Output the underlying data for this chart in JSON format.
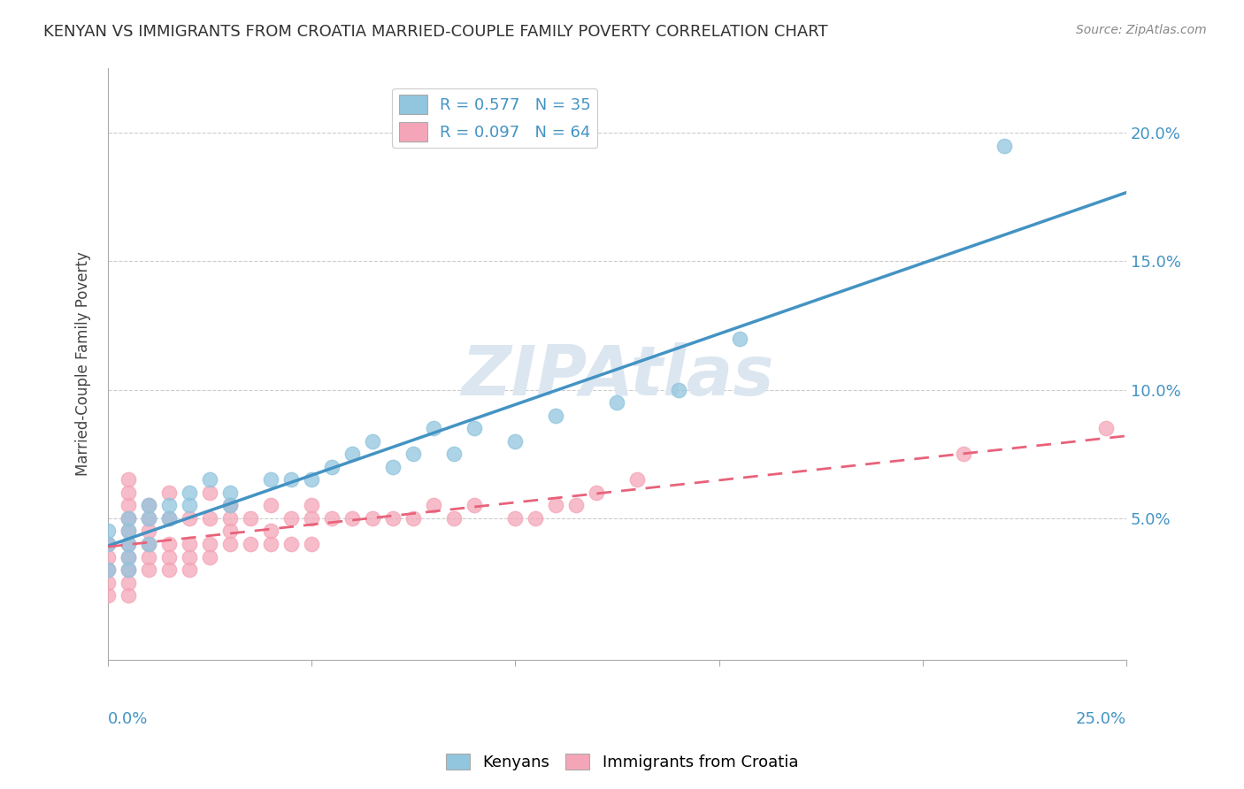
{
  "title": "KENYAN VS IMMIGRANTS FROM CROATIA MARRIED-COUPLE FAMILY POVERTY CORRELATION CHART",
  "source": "Source: ZipAtlas.com",
  "ylabel": "Married-Couple Family Poverty",
  "x_min": 0.0,
  "x_max": 0.25,
  "y_min": -0.005,
  "y_max": 0.225,
  "y_ticks": [
    0.05,
    0.1,
    0.15,
    0.2
  ],
  "y_tick_labels": [
    "5.0%",
    "10.0%",
    "15.0%",
    "20.0%"
  ],
  "x_ticks": [
    0.0,
    0.05,
    0.1,
    0.15,
    0.2,
    0.25
  ],
  "legend_r1": "R = 0.577   N = 35",
  "legend_r2": "R = 0.097   N = 64",
  "legend_labels": [
    "Kenyans",
    "Immigrants from Croatia"
  ],
  "blue_color": "#92c5de",
  "pink_color": "#f4a6b8",
  "line_blue_color": "#4393c3",
  "line_pink_color": "#e8627a",
  "kenyan_x": [
    0.0,
    0.0,
    0.0,
    0.005,
    0.005,
    0.005,
    0.005,
    0.005,
    0.01,
    0.01,
    0.01,
    0.015,
    0.015,
    0.02,
    0.02,
    0.025,
    0.03,
    0.03,
    0.04,
    0.045,
    0.05,
    0.055,
    0.06,
    0.065,
    0.07,
    0.075,
    0.08,
    0.085,
    0.09,
    0.1,
    0.11,
    0.125,
    0.14,
    0.155,
    0.22
  ],
  "kenyan_y": [
    0.03,
    0.04,
    0.045,
    0.03,
    0.035,
    0.04,
    0.045,
    0.05,
    0.04,
    0.05,
    0.055,
    0.05,
    0.055,
    0.055,
    0.06,
    0.065,
    0.055,
    0.06,
    0.065,
    0.065,
    0.065,
    0.07,
    0.075,
    0.08,
    0.07,
    0.075,
    0.085,
    0.075,
    0.085,
    0.08,
    0.09,
    0.095,
    0.1,
    0.12,
    0.195
  ],
  "croatia_x": [
    0.0,
    0.0,
    0.0,
    0.0,
    0.0,
    0.005,
    0.005,
    0.005,
    0.005,
    0.005,
    0.005,
    0.005,
    0.005,
    0.005,
    0.005,
    0.01,
    0.01,
    0.01,
    0.01,
    0.01,
    0.01,
    0.015,
    0.015,
    0.015,
    0.015,
    0.015,
    0.02,
    0.02,
    0.02,
    0.02,
    0.025,
    0.025,
    0.025,
    0.025,
    0.03,
    0.03,
    0.03,
    0.03,
    0.035,
    0.035,
    0.04,
    0.04,
    0.04,
    0.045,
    0.045,
    0.05,
    0.05,
    0.05,
    0.055,
    0.06,
    0.065,
    0.07,
    0.075,
    0.08,
    0.085,
    0.09,
    0.1,
    0.105,
    0.11,
    0.115,
    0.12,
    0.13,
    0.21,
    0.245
  ],
  "croatia_y": [
    0.02,
    0.025,
    0.03,
    0.035,
    0.04,
    0.02,
    0.025,
    0.03,
    0.035,
    0.04,
    0.045,
    0.05,
    0.055,
    0.06,
    0.065,
    0.03,
    0.035,
    0.04,
    0.045,
    0.05,
    0.055,
    0.03,
    0.035,
    0.04,
    0.05,
    0.06,
    0.03,
    0.035,
    0.04,
    0.05,
    0.035,
    0.04,
    0.05,
    0.06,
    0.04,
    0.045,
    0.05,
    0.055,
    0.04,
    0.05,
    0.04,
    0.045,
    0.055,
    0.04,
    0.05,
    0.04,
    0.05,
    0.055,
    0.05,
    0.05,
    0.05,
    0.05,
    0.05,
    0.055,
    0.05,
    0.055,
    0.05,
    0.05,
    0.055,
    0.055,
    0.06,
    0.065,
    0.075,
    0.085
  ],
  "watermark": "ZIPAtlas",
  "watermark_color": "#dce6f0",
  "bg_color": "#ffffff",
  "grid_color": "#cccccc"
}
